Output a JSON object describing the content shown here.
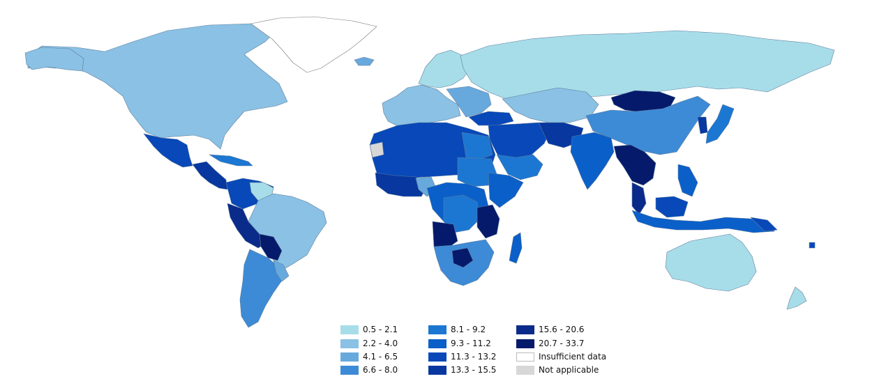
{
  "legend": {
    "items": [
      {
        "label": "0.5 - 2.1",
        "color": "#a7dde9"
      },
      {
        "label": "2.2 - 4.0",
        "color": "#8ac1e4"
      },
      {
        "label": "4.1 - 6.5",
        "color": "#68a9dd"
      },
      {
        "label": "6.6 - 8.0",
        "color": "#3d8bd6"
      },
      {
        "label": "8.1 - 9.2",
        "color": "#1c77d2"
      },
      {
        "label": "9.3 - 11.2",
        "color": "#0b5fc9"
      },
      {
        "label": "11.3 - 13.2",
        "color": "#0848b8"
      },
      {
        "label": "13.3 - 15.5",
        "color": "#07379f"
      },
      {
        "label": "15.6 - 20.6",
        "color": "#0b2b8a"
      },
      {
        "label": "20.7 - 33.7",
        "color": "#061a6b"
      },
      {
        "label": "Insufficient data",
        "color": "#ffffff"
      },
      {
        "label": "Not applicable",
        "color": "#d7d7d7"
      }
    ]
  },
  "colors": {
    "border": "#7a8a99",
    "background": "#ffffff"
  }
}
